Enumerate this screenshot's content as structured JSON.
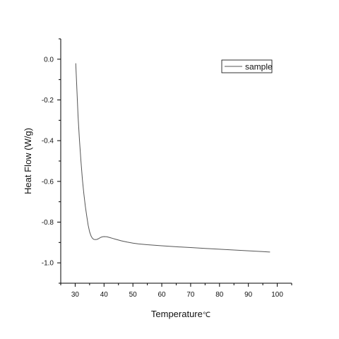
{
  "chart_data": {
    "type": "line",
    "title": "",
    "xlabel": "Temperature",
    "xlabel_unit": "℃",
    "ylabel": "Heat Flow  (W/g)",
    "xlim": [
      25,
      105
    ],
    "ylim": [
      -1.1,
      0.1
    ],
    "x_ticks": [
      "30",
      "40",
      "50",
      "60",
      "70",
      "80",
      "90",
      "100"
    ],
    "y_ticks": [
      "0.0",
      "-0.2",
      "-0.4",
      "-0.6",
      "-0.8",
      "-1.0"
    ],
    "grid": false,
    "legend_position": "top-right",
    "series": [
      {
        "name": "sample",
        "color": "#555555",
        "x": [
          30.2,
          30.6,
          31.0,
          31.5,
          32.0,
          32.5,
          33.0,
          33.5,
          34.0,
          34.5,
          35.0,
          35.5,
          36.0,
          36.5,
          37.0,
          37.5,
          38.0,
          38.5,
          39.0,
          39.5,
          40.0,
          41.0,
          42.0,
          43.0,
          44.0,
          45.0,
          46.0,
          48.0,
          50.0,
          52.0,
          55.0,
          60.0,
          65.0,
          70.0,
          75.0,
          80.0,
          85.0,
          90.0,
          95.0,
          97.5
        ],
        "y": [
          -0.02,
          -0.15,
          -0.28,
          -0.4,
          -0.5,
          -0.59,
          -0.66,
          -0.72,
          -0.77,
          -0.815,
          -0.848,
          -0.868,
          -0.88,
          -0.885,
          -0.886,
          -0.885,
          -0.882,
          -0.878,
          -0.874,
          -0.872,
          -0.871,
          -0.872,
          -0.876,
          -0.88,
          -0.884,
          -0.888,
          -0.892,
          -0.898,
          -0.903,
          -0.907,
          -0.911,
          -0.916,
          -0.921,
          -0.925,
          -0.929,
          -0.933,
          -0.937,
          -0.941,
          -0.945,
          -0.947
        ]
      }
    ]
  }
}
